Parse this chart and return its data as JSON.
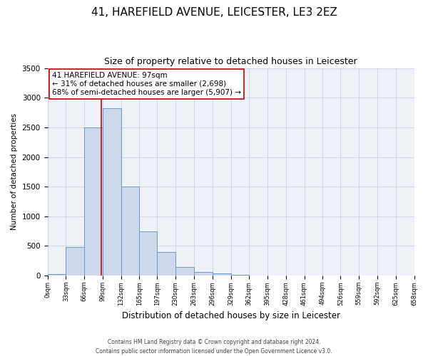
{
  "title": "41, HAREFIELD AVENUE, LEICESTER, LE3 2EZ",
  "subtitle": "Size of property relative to detached houses in Leicester",
  "xlabel": "Distribution of detached houses by size in Leicester",
  "ylabel": "Number of detached properties",
  "bin_edges": [
    0,
    33,
    66,
    99,
    132,
    165,
    197,
    230,
    263,
    296,
    329,
    362,
    395,
    428,
    461,
    494,
    526,
    559,
    592,
    625,
    658
  ],
  "bin_counts": [
    20,
    480,
    2500,
    2820,
    1500,
    750,
    400,
    150,
    60,
    40,
    10,
    5,
    2,
    0,
    0,
    0,
    0,
    0,
    0,
    0
  ],
  "bar_facecolor": "#cdd9ea",
  "bar_edgecolor": "#6699cc",
  "property_line_x": 97,
  "property_line_color": "#cc0000",
  "annotation_text": "41 HAREFIELD AVENUE: 97sqm\n← 31% of detached houses are smaller (2,698)\n68% of semi-detached houses are larger (5,907) →",
  "annotation_box_edgecolor": "#cc0000",
  "annotation_box_facecolor": "white",
  "ylim": [
    0,
    3500
  ],
  "xlim": [
    0,
    658
  ],
  "yticks": [
    0,
    500,
    1000,
    1500,
    2000,
    2500,
    3000,
    3500
  ],
  "xtick_labels": [
    "0sqm",
    "33sqm",
    "66sqm",
    "99sqm",
    "132sqm",
    "165sqm",
    "197sqm",
    "230sqm",
    "263sqm",
    "296sqm",
    "329sqm",
    "362sqm",
    "395sqm",
    "428sqm",
    "461sqm",
    "494sqm",
    "526sqm",
    "559sqm",
    "592sqm",
    "625sqm",
    "658sqm"
  ],
  "grid_color": "#c8d8e8",
  "background_color": "#eef2f7",
  "title_fontsize": 11,
  "subtitle_fontsize": 9,
  "annotation_fontsize": 7.5,
  "ylabel_fontsize": 7.5,
  "xlabel_fontsize": 8.5,
  "footer_text": "Contains HM Land Registry data © Crown copyright and database right 2024.\nContains public sector information licensed under the Open Government Licence v3.0."
}
